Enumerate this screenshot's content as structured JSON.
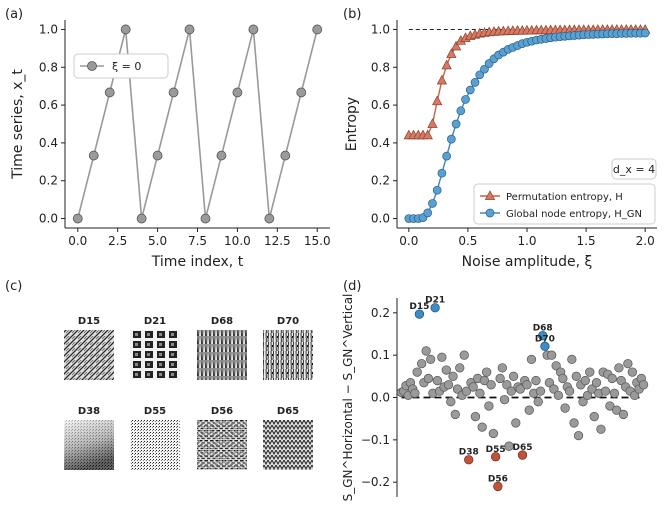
{
  "chart_data": [
    {
      "panel": "(a)",
      "type": "line",
      "xlabel": "Time index, t",
      "ylabel": "Time series, x_t",
      "xlim": [
        -0.8,
        15.8
      ],
      "ylim": [
        -0.05,
        1.05
      ],
      "xticks": [
        "0.0",
        "2.5",
        "5.0",
        "7.5",
        "10.0",
        "12.5",
        "15.0"
      ],
      "yticks": [
        "0.0",
        "0.2",
        "0.4",
        "0.6",
        "0.8",
        "1.0"
      ],
      "legend": {
        "label": "ξ = 0",
        "position": "upper-left"
      },
      "series": [
        {
          "name": "ξ = 0",
          "x": [
            0,
            1,
            2,
            3,
            4,
            5,
            6,
            7,
            8,
            9,
            10,
            11,
            12,
            13,
            14,
            15
          ],
          "values": [
            0.0,
            0.333,
            0.667,
            1.0,
            0.0,
            0.333,
            0.667,
            1.0,
            0.0,
            0.333,
            0.667,
            1.0,
            0.0,
            0.333,
            0.667,
            1.0
          ]
        }
      ]
    },
    {
      "panel": "(b)",
      "type": "line",
      "xlabel": "Noise amplitude, ξ",
      "ylabel": "Entropy",
      "xlim": [
        -0.1,
        2.1
      ],
      "ylim": [
        -0.05,
        1.05
      ],
      "xticks": [
        "0.0",
        "0.5",
        "1.0",
        "1.5",
        "2.0"
      ],
      "yticks": [
        "0.0",
        "0.2",
        "0.4",
        "0.6",
        "0.8",
        "1.0"
      ],
      "annotation": "d_x = 4",
      "reference_line": 1.0,
      "legend": {
        "position": "lower-right",
        "entries": [
          "Permutation entropy, H",
          "Global node entropy, H_GN"
        ]
      },
      "series": [
        {
          "name": "Permutation entropy, H",
          "x": [
            0,
            0.04,
            0.08,
            0.12,
            0.16,
            0.2,
            0.24,
            0.28,
            0.32,
            0.36,
            0.4,
            0.44,
            0.48,
            0.52,
            0.56,
            0.6,
            0.64,
            0.68,
            0.72,
            0.76,
            0.8,
            0.84,
            0.88,
            0.92,
            0.96,
            1.0,
            1.04,
            1.08,
            1.12,
            1.16,
            1.2,
            1.24,
            1.28,
            1.32,
            1.36,
            1.4,
            1.44,
            1.48,
            1.52,
            1.56,
            1.6,
            1.64,
            1.68,
            1.72,
            1.76,
            1.8,
            1.84,
            1.88,
            1.92,
            1.96,
            2.0
          ],
          "values": [
            0.44,
            0.44,
            0.44,
            0.44,
            0.44,
            0.5,
            0.62,
            0.73,
            0.81,
            0.87,
            0.91,
            0.94,
            0.955,
            0.965,
            0.972,
            0.978,
            0.982,
            0.985,
            0.987,
            0.989,
            0.99,
            0.991,
            0.992,
            0.993,
            0.993,
            0.994,
            0.994,
            0.995,
            0.995,
            0.995,
            0.996,
            0.996,
            0.996,
            0.996,
            0.997,
            0.997,
            0.997,
            0.997,
            0.997,
            0.997,
            0.998,
            0.998,
            0.998,
            0.998,
            0.998,
            0.998,
            0.998,
            0.998,
            0.998,
            0.998,
            0.998
          ]
        },
        {
          "name": "Global node entropy, H_GN",
          "x": [
            0,
            0.04,
            0.08,
            0.12,
            0.16,
            0.2,
            0.24,
            0.28,
            0.32,
            0.36,
            0.4,
            0.44,
            0.48,
            0.52,
            0.56,
            0.6,
            0.64,
            0.68,
            0.72,
            0.76,
            0.8,
            0.84,
            0.88,
            0.92,
            0.96,
            1.0,
            1.04,
            1.08,
            1.12,
            1.16,
            1.2,
            1.24,
            1.28,
            1.32,
            1.36,
            1.4,
            1.44,
            1.48,
            1.52,
            1.56,
            1.6,
            1.64,
            1.68,
            1.72,
            1.76,
            1.8,
            1.84,
            1.88,
            1.92,
            1.96,
            2.0
          ],
          "values": [
            0.0,
            0.0,
            0.0,
            0.005,
            0.03,
            0.08,
            0.15,
            0.24,
            0.33,
            0.42,
            0.5,
            0.57,
            0.63,
            0.68,
            0.72,
            0.76,
            0.79,
            0.82,
            0.845,
            0.865,
            0.88,
            0.895,
            0.905,
            0.915,
            0.925,
            0.932,
            0.938,
            0.944,
            0.948,
            0.952,
            0.956,
            0.959,
            0.962,
            0.964,
            0.966,
            0.968,
            0.97,
            0.972,
            0.973,
            0.974,
            0.975,
            0.976,
            0.977,
            0.978,
            0.978,
            0.979,
            0.979,
            0.98,
            0.98,
            0.98,
            0.981
          ]
        }
      ]
    },
    {
      "panel": "(c)",
      "type": "image-grid",
      "labels": [
        "D15",
        "D21",
        "D68",
        "D70",
        "D38",
        "D55",
        "D56",
        "D65"
      ]
    },
    {
      "panel": "(d)",
      "type": "scatter",
      "ylabel": "S_GN^Horizontal − S_GN^Vertical",
      "xlim": [
        -2,
        114
      ],
      "ylim": [
        -0.235,
        0.235
      ],
      "yticks": [
        "−0.2",
        "−0.1",
        "0.0",
        "0.1",
        "0.2"
      ],
      "reference_line": 0.0,
      "highlighted_positive": [
        {
          "label": "D15",
          "x": 8,
          "y": 0.197
        },
        {
          "label": "D21",
          "x": 15,
          "y": 0.212
        },
        {
          "label": "D68",
          "x": 63,
          "y": 0.146
        },
        {
          "label": "D70",
          "x": 64,
          "y": 0.121
        }
      ],
      "highlighted_negative": [
        {
          "label": "D38",
          "x": 30,
          "y": -0.147
        },
        {
          "label": "D55",
          "x": 42,
          "y": -0.14
        },
        {
          "label": "D65",
          "x": 54,
          "y": -0.136
        },
        {
          "label": "D56",
          "x": 43,
          "y": -0.21
        }
      ],
      "points": [
        [
          0,
          0.012
        ],
        [
          1,
          0.015
        ],
        [
          2,
          0.028
        ],
        [
          3,
          0.005
        ],
        [
          4,
          0.035
        ],
        [
          5,
          0.02
        ],
        [
          6,
          0.01
        ],
        [
          7,
          0.06
        ],
        [
          9,
          0.08
        ],
        [
          10,
          0.035
        ],
        [
          11,
          0.11
        ],
        [
          12,
          0.045
        ],
        [
          13,
          0.09
        ],
        [
          14,
          0.01
        ],
        [
          16,
          0.04
        ],
        [
          17,
          0.015
        ],
        [
          18,
          0.095
        ],
        [
          19,
          0.025
        ],
        [
          20,
          0.065
        ],
        [
          21,
          0.03
        ],
        [
          22,
          -0.01
        ],
        [
          23,
          0.05
        ],
        [
          24,
          -0.04
        ],
        [
          25,
          0.02
        ],
        [
          26,
          0.07
        ],
        [
          27,
          0.005
        ],
        [
          28,
          0.1
        ],
        [
          29,
          0.015
        ],
        [
          31,
          0.035
        ],
        [
          32,
          0.025
        ],
        [
          33,
          -0.045
        ],
        [
          34,
          0.045
        ],
        [
          35,
          0.01
        ],
        [
          36,
          -0.07
        ],
        [
          37,
          0.04
        ],
        [
          38,
          0.06
        ],
        [
          39,
          -0.02
        ],
        [
          40,
          0.03
        ],
        [
          41,
          -0.085
        ],
        [
          44,
          0.045
        ],
        [
          45,
          0.07
        ],
        [
          46,
          -0.005
        ],
        [
          47,
          0.03
        ],
        [
          48,
          -0.115
        ],
        [
          49,
          0.015
        ],
        [
          50,
          0.05
        ],
        [
          51,
          -0.06
        ],
        [
          52,
          0.025
        ],
        [
          53,
          0.02
        ],
        [
          55,
          0.04
        ],
        [
          56,
          0.03
        ],
        [
          57,
          -0.03
        ],
        [
          58,
          0.09
        ],
        [
          59,
          0.01
        ],
        [
          60,
          0.04
        ],
        [
          61,
          -0.01
        ],
        [
          62,
          0.015
        ],
        [
          65,
          0.1
        ],
        [
          66,
          0.035
        ],
        [
          67,
          0.1
        ],
        [
          68,
          0.02
        ],
        [
          69,
          0.075
        ],
        [
          70,
          0.005
        ],
        [
          71,
          0.06
        ],
        [
          72,
          0.045
        ],
        [
          73,
          -0.025
        ],
        [
          74,
          0.025
        ],
        [
          75,
          0.015
        ],
        [
          76,
          0.09
        ],
        [
          77,
          -0.06
        ],
        [
          78,
          0.05
        ],
        [
          79,
          -0.09
        ],
        [
          80,
          0.03
        ],
        [
          81,
          -0.01
        ],
        [
          82,
          0.04
        ],
        [
          83,
          0.005
        ],
        [
          84,
          0.06
        ],
        [
          85,
          0.02
        ],
        [
          86,
          -0.045
        ],
        [
          87,
          0.035
        ],
        [
          88,
          0.01
        ],
        [
          89,
          -0.075
        ],
        [
          90,
          0.06
        ],
        [
          91,
          0.015
        ],
        [
          92,
          0.055
        ],
        [
          93,
          -0.02
        ],
        [
          94,
          0.045
        ],
        [
          95,
          0.01
        ],
        [
          96,
          -0.03
        ],
        [
          97,
          0.07
        ],
        [
          98,
          0.04
        ],
        [
          99,
          -0.04
        ],
        [
          100,
          0.025
        ],
        [
          101,
          0.08
        ],
        [
          102,
          0.015
        ],
        [
          103,
          0.06
        ],
        [
          104,
          0.005
        ],
        [
          105,
          0.035
        ],
        [
          106,
          0.02
        ],
        [
          107,
          0.045
        ],
        [
          108,
          0.03
        ]
      ]
    }
  ],
  "colors": {
    "gray_fill": "#9a9a9a",
    "gray_line": "#999999",
    "perm_fill": "#d87a63",
    "perm_line": "#c4634b",
    "gn_fill": "#5aa1d3",
    "gn_line": "#3d87bd",
    "red_point": "#c0533a",
    "blue_point": "#3b8cc8"
  }
}
